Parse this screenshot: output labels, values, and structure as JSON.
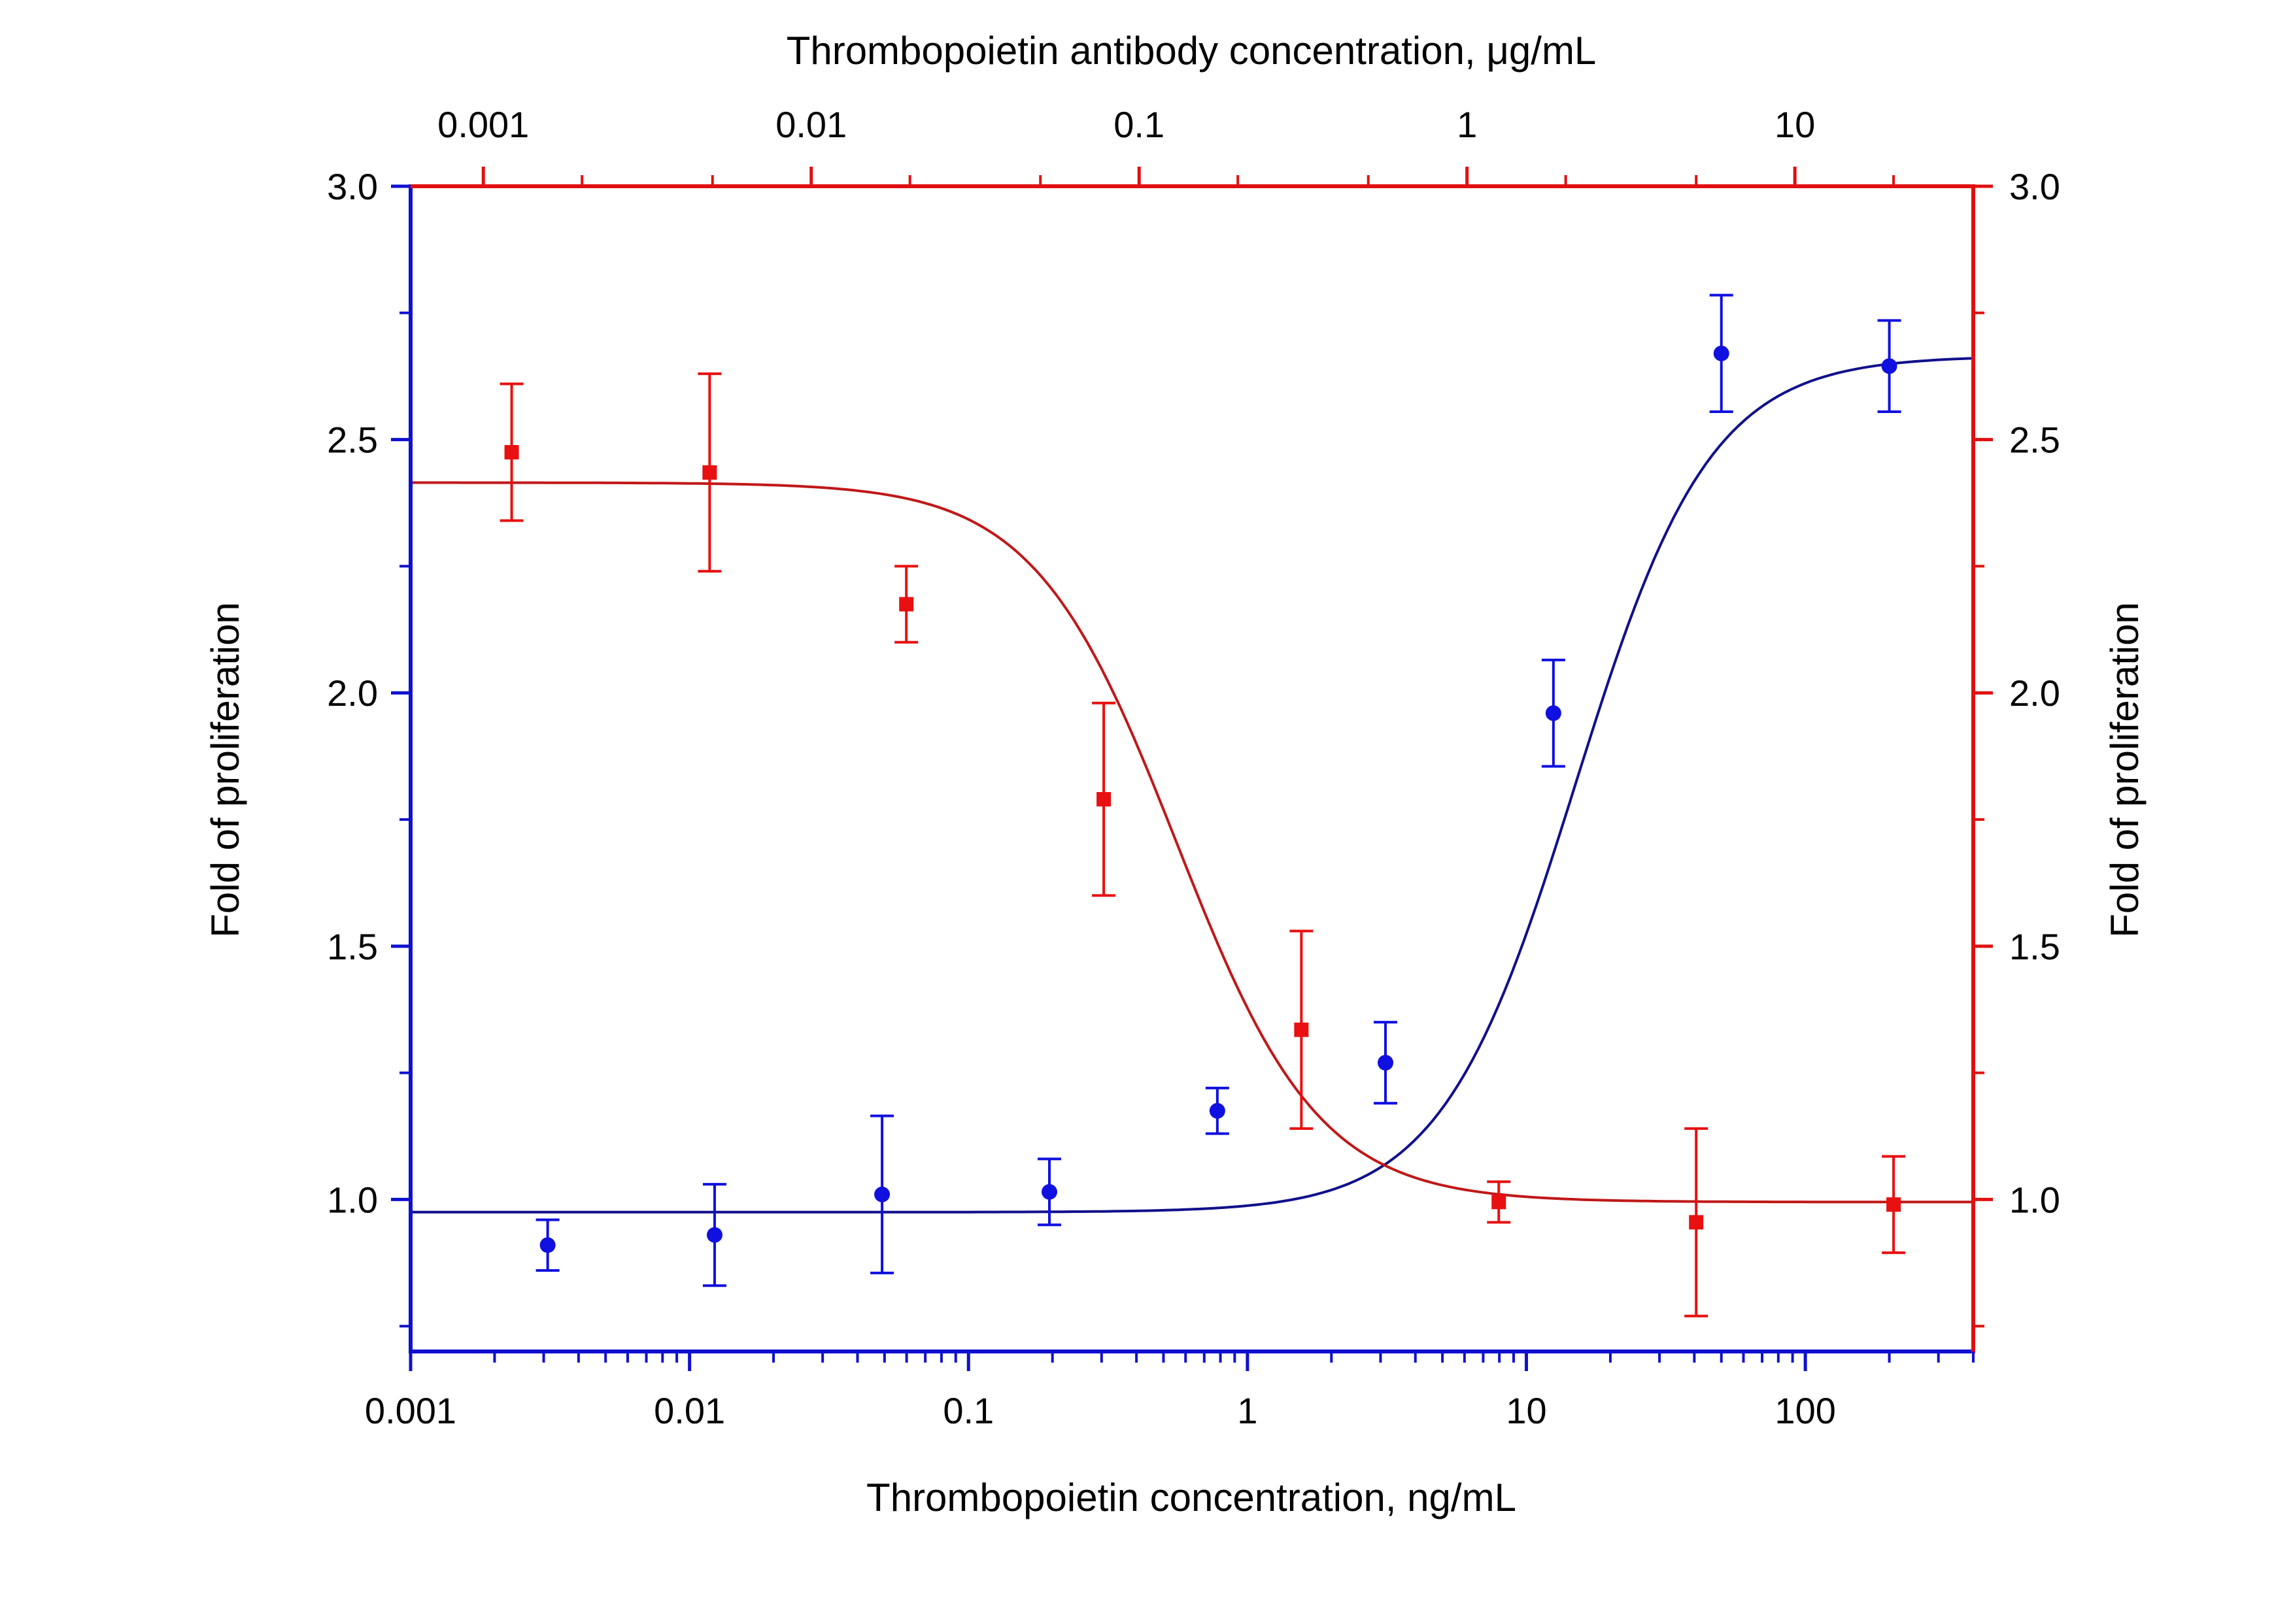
{
  "chart_data": {
    "type": "scatter",
    "title": "",
    "xlabel": "Thrombopoietin concentration, ng/mL",
    "x2label": "Thrombopoietin antibody concentration, μg/mL",
    "ylabel": "Fold of proliferation",
    "y2label": "Fold of proliferation",
    "x_scale": "log",
    "x_range": [
      0.001,
      400
    ],
    "x_tick_labels": [
      "0.001",
      "0.01",
      "0.1",
      "1",
      "10",
      "100"
    ],
    "x2_scale": "log",
    "x2_range": [
      0.0006,
      35
    ],
    "x2_tick_labels": [
      "0.001",
      "0.01",
      "0.1",
      "1",
      "10"
    ],
    "y_range": [
      0.7,
      3.0
    ],
    "y_tick_labels": [
      "1.0",
      "1.5",
      "2.0",
      "2.5",
      "3.0"
    ],
    "y2_tick_labels": [
      "1.0",
      "1.5",
      "2.0",
      "2.5",
      "3.0"
    ],
    "grid": false,
    "legend": "none",
    "colors": {
      "left_axis": "#1010d0",
      "right_axis": "#e01010",
      "blue_series": "#1010e0",
      "blue_curve": "#10108c",
      "red_series": "#e81010",
      "red_curve": "#c01818"
    },
    "series": [
      {
        "axis": "bottom-left",
        "marker": "circle",
        "color": "#1010e0",
        "points": [
          {
            "x": 0.0031,
            "y": 0.91,
            "err": 0.05
          },
          {
            "x": 0.0123,
            "y": 0.93,
            "err": 0.1
          },
          {
            "x": 0.049,
            "y": 1.01,
            "err": 0.155
          },
          {
            "x": 0.195,
            "y": 1.015,
            "err": 0.065
          },
          {
            "x": 0.78,
            "y": 1.175,
            "err": 0.045
          },
          {
            "x": 3.125,
            "y": 1.27,
            "err": 0.08
          },
          {
            "x": 12.5,
            "y": 1.96,
            "err": 0.105
          },
          {
            "x": 50,
            "y": 2.67,
            "err": 0.115
          },
          {
            "x": 200,
            "y": 2.645,
            "err": 0.09
          }
        ],
        "fit": {
          "bottom": 0.975,
          "top": 2.665,
          "ec50": 15,
          "hill": 1.8
        }
      },
      {
        "axis": "top-right",
        "marker": "square",
        "color": "#e81010",
        "points": [
          {
            "x": 0.00122,
            "y": 2.475,
            "err": 0.135
          },
          {
            "x": 0.0049,
            "y": 2.435,
            "err": 0.195
          },
          {
            "x": 0.0195,
            "y": 2.175,
            "err": 0.075
          },
          {
            "x": 0.078,
            "y": 1.79,
            "err": 0.19
          },
          {
            "x": 0.3125,
            "y": 1.335,
            "err": 0.195
          },
          {
            "x": 1.25,
            "y": 0.995,
            "err": 0.04
          },
          {
            "x": 5,
            "y": 0.955,
            "err": 0.185
          },
          {
            "x": 20,
            "y": 0.99,
            "err": 0.095
          }
        ],
        "fit": {
          "bottom": 0.995,
          "top": 2.415,
          "ic50": 0.13,
          "hill": 2.0
        }
      }
    ]
  }
}
